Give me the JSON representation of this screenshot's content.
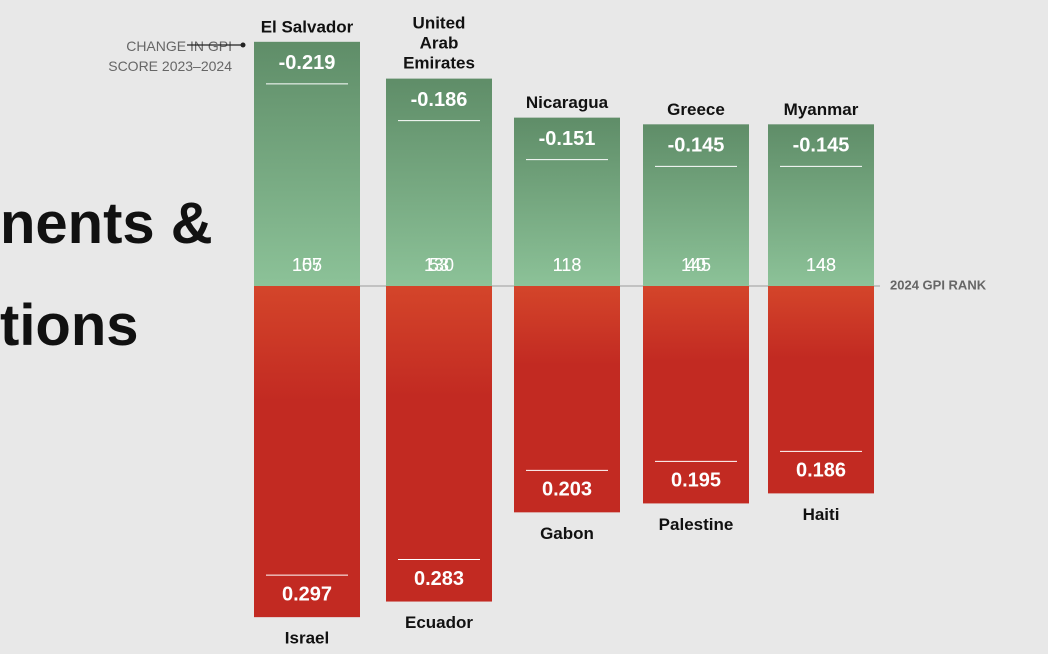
{
  "chart_data": {
    "type": "bar",
    "headline": [
      "nents &",
      "tions"
    ],
    "annotation": "CHANGE IN GPI SCORE 2023–2024",
    "axis_label": "2024 GPI RANK",
    "series": [
      {
        "color": "#5f8d68",
        "color_light": "#8cc298",
        "categories": [
          "El Salvador",
          "United Arab Emirates",
          "Nicaragua",
          "Greece",
          "Myanmar"
        ],
        "values": [
          -0.219,
          -0.186,
          -0.151,
          -0.145,
          -0.145
        ],
        "ranks": [
          107,
          53,
          113,
          40,
          148
        ]
      },
      {
        "color": "#c22a22",
        "color_light": "#d4452a",
        "categories": [
          "Israel",
          "Ecuador",
          "Gabon",
          "Palestine",
          "Haiti"
        ],
        "values": [
          0.297,
          0.283,
          0.203,
          0.195,
          0.186
        ],
        "ranks": [
          155,
          130,
          118,
          145,
          143
        ]
      }
    ]
  }
}
